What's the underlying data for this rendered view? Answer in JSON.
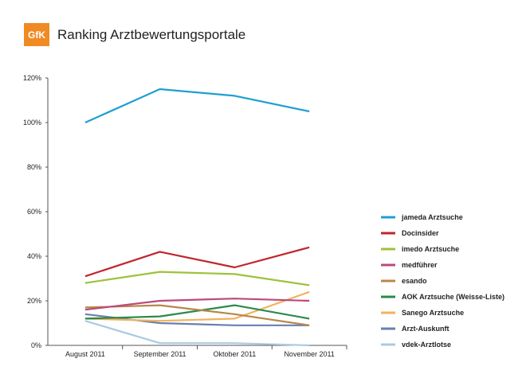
{
  "logo_text": "GfK",
  "colors": {
    "logo": "#f08a24",
    "axis": "#555555"
  },
  "chart_data": {
    "type": "line",
    "title": "Ranking Arztbewertungsportale",
    "xlabel": "",
    "ylabel": "",
    "ylim": [
      0,
      120
    ],
    "y_ticks": [
      "0%",
      "20%",
      "40%",
      "60%",
      "80%",
      "100%",
      "120%"
    ],
    "categories": [
      "August 2011",
      "September 2011",
      "Oktober 2011",
      "November 2011"
    ],
    "legend_position": "right",
    "series": [
      {
        "name": "jameda Arztsuche",
        "color": "#1e9fd0",
        "values": [
          100,
          115,
          112,
          105
        ]
      },
      {
        "name": "Docinsider",
        "color": "#c0262d",
        "values": [
          31,
          42,
          35,
          44
        ]
      },
      {
        "name": "imedo Arztsuche",
        "color": "#9ec23a",
        "values": [
          28,
          33,
          32,
          27
        ]
      },
      {
        "name": "medführer",
        "color": "#b94a7a",
        "values": [
          16,
          20,
          21,
          20
        ]
      },
      {
        "name": "esando",
        "color": "#b8874a",
        "values": [
          17,
          18,
          14,
          9
        ]
      },
      {
        "name": "AOK Arztsuche (Weisse-Liste)",
        "color": "#2a8a4a",
        "values": [
          12,
          13,
          18,
          12
        ]
      },
      {
        "name": "Sanego Arztsuche",
        "color": "#f2b25c",
        "values": [
          12,
          11,
          12,
          24
        ]
      },
      {
        "name": "Arzt-Auskunft",
        "color": "#6a7fb0",
        "values": [
          14,
          10,
          9,
          9
        ]
      },
      {
        "name": "vdek-Arztlotse",
        "color": "#a9cbe0",
        "values": [
          11,
          1,
          1,
          0
        ]
      }
    ]
  }
}
